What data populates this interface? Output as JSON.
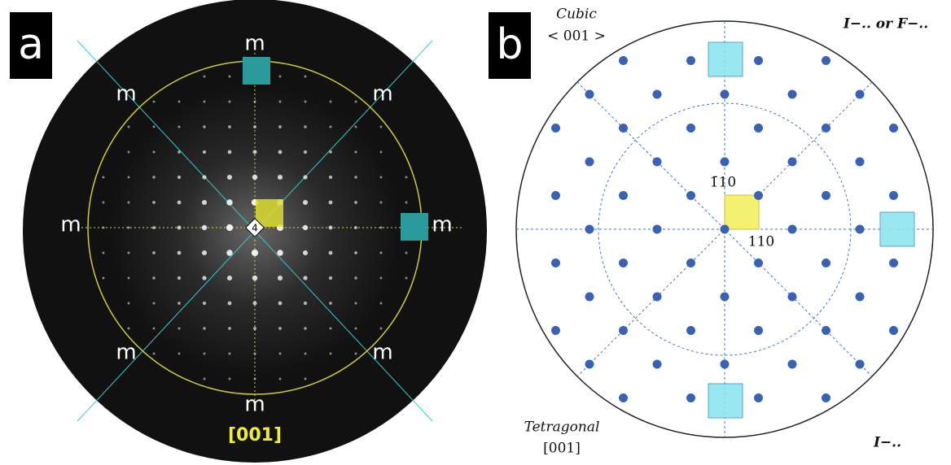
{
  "panel_a": {
    "label": "a",
    "mirrors": [
      "m",
      "m",
      "m",
      "m",
      "m",
      "m",
      "m",
      "m"
    ],
    "axis_symbol": "4",
    "zone": "[001]"
  },
  "panel_b": {
    "label": "b",
    "top_left": [
      "Cubic",
      "< 001 >"
    ],
    "top_right": "I−.. or F−..",
    "bottom_left": [
      "Tetragonal",
      "[001]"
    ],
    "bottom_right": "I−..",
    "reflections": [
      "1̄10",
      "110"
    ]
  }
}
